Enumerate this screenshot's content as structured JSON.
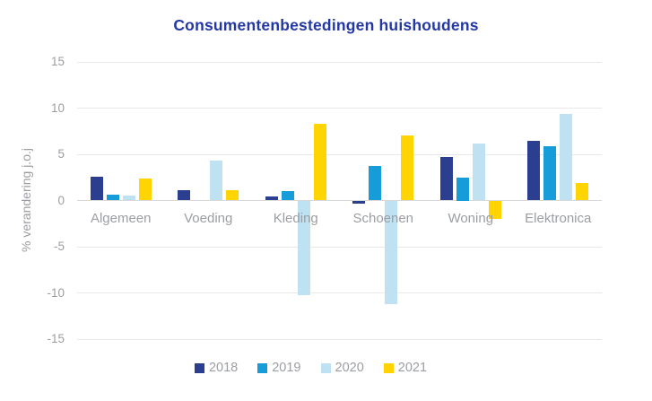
{
  "title": "Consumentenbestedingen huishoudens",
  "colors": {
    "title_text": "#2438a4",
    "axis_text": "#9b9ea3",
    "gridline": "#e8e8e8",
    "zero_line": "#d8d8d8",
    "background": "#ffffff"
  },
  "y_axis": {
    "label": "% verandering j.o.j",
    "ticks": [
      "15",
      "10",
      "5",
      "0",
      "-5",
      "-10",
      "-15"
    ]
  },
  "chart_data": {
    "type": "bar",
    "title": "Consumentenbestedingen huishoudens",
    "categories": [
      "Algemeen",
      "Voeding",
      "Kleding",
      "Schoenen",
      "Woning",
      "Elektronica"
    ],
    "series": [
      {
        "name": "2018",
        "color": "#2b3e8f",
        "values": [
          2.6,
          1.1,
          0.4,
          -0.3,
          4.7,
          6.5
        ]
      },
      {
        "name": "2019",
        "color": "#169cd8",
        "values": [
          0.6,
          0.0,
          1.0,
          3.7,
          2.5,
          5.9
        ]
      },
      {
        "name": "2020",
        "color": "#bee2f2",
        "values": [
          0.5,
          4.3,
          -10.2,
          -11.2,
          6.2,
          9.4
        ]
      },
      {
        "name": "2021",
        "color": "#ffd400",
        "values": [
          2.4,
          1.1,
          8.3,
          7.0,
          -2.0,
          1.9
        ]
      }
    ],
    "xlabel": "",
    "ylabel": "% verandering j.o.j",
    "ylim": [
      -15,
      15
    ],
    "ytick_values": [
      15,
      10,
      5,
      0,
      -5,
      -10,
      -15
    ],
    "grid": true,
    "legend_position": "bottom"
  },
  "legend": {
    "items": [
      {
        "label": "2018",
        "color": "#2b3e8f"
      },
      {
        "label": "2019",
        "color": "#169cd8"
      },
      {
        "label": "2020",
        "color": "#bee2f2"
      },
      {
        "label": "2021",
        "color": "#ffd400"
      }
    ]
  }
}
